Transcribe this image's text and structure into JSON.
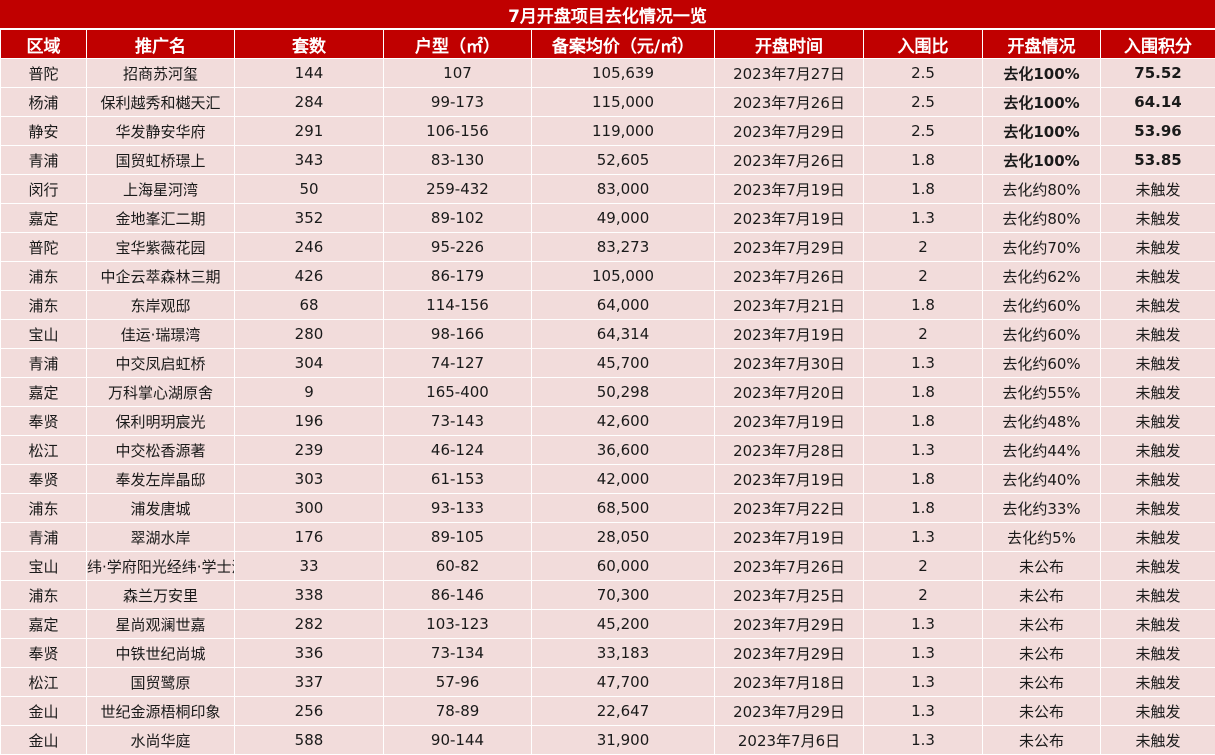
{
  "title": "7月开盘项目去化情况一览",
  "columns": [
    "区域",
    "推广名",
    "套数",
    "户型（㎡）",
    "备案均价（元/㎡）",
    "开盘时间",
    "入围比",
    "开盘情况",
    "入围积分"
  ],
  "rows": [
    [
      "普陀",
      "招商苏河玺",
      "144",
      "107",
      "105,639",
      "2023年7月27日",
      "2.5",
      "去化100%",
      "75.52"
    ],
    [
      "杨浦",
      "保利越秀和樾天汇",
      "284",
      "99-173",
      "115,000",
      "2023年7月26日",
      "2.5",
      "去化100%",
      "64.14"
    ],
    [
      "静安",
      "华发静安华府",
      "291",
      "106-156",
      "119,000",
      "2023年7月29日",
      "2.5",
      "去化100%",
      "53.96"
    ],
    [
      "青浦",
      "国贸虹桥璟上",
      "343",
      "83-130",
      "52,605",
      "2023年7月26日",
      "1.8",
      "去化100%",
      "53.85"
    ],
    [
      "闵行",
      "上海星河湾",
      "50",
      "259-432",
      "83,000",
      "2023年7月19日",
      "1.8",
      "去化约80%",
      "未触发"
    ],
    [
      "嘉定",
      "金地峯汇二期",
      "352",
      "89-102",
      "49,000",
      "2023年7月19日",
      "1.3",
      "去化约80%",
      "未触发"
    ],
    [
      "普陀",
      "宝华紫薇花园",
      "246",
      "95-226",
      "83,273",
      "2023年7月29日",
      "2",
      "去化约70%",
      "未触发"
    ],
    [
      "浦东",
      "中企云萃森林三期",
      "426",
      "86-179",
      "105,000",
      "2023年7月26日",
      "2",
      "去化约62%",
      "未触发"
    ],
    [
      "浦东",
      "东岸观邸",
      "68",
      "114-156",
      "64,000",
      "2023年7月21日",
      "1.8",
      "去化约60%",
      "未触发"
    ],
    [
      "宝山",
      "佳运·瑞璟湾",
      "280",
      "98-166",
      "64,314",
      "2023年7月19日",
      "2",
      "去化约60%",
      "未触发"
    ],
    [
      "青浦",
      "中交凤启虹桥",
      "304",
      "74-127",
      "45,700",
      "2023年7月30日",
      "1.3",
      "去化约60%",
      "未触发"
    ],
    [
      "嘉定",
      "万科掌心湖原舍",
      "9",
      "165-400",
      "50,298",
      "2023年7月20日",
      "1.8",
      "去化约55%",
      "未触发"
    ],
    [
      "奉贤",
      "保利明玥宸光",
      "196",
      "73-143",
      "42,600",
      "2023年7月19日",
      "1.8",
      "去化约48%",
      "未触发"
    ],
    [
      "松江",
      "中交松香源著",
      "239",
      "46-124",
      "36,600",
      "2023年7月28日",
      "1.3",
      "去化约44%",
      "未触发"
    ],
    [
      "奉贤",
      "奉发左岸晶邸",
      "303",
      "61-153",
      "42,000",
      "2023年7月19日",
      "1.8",
      "去化约40%",
      "未触发"
    ],
    [
      "浦东",
      "浦发唐城",
      "300",
      "93-133",
      "68,500",
      "2023年7月22日",
      "1.8",
      "去化约33%",
      "未触发"
    ],
    [
      "青浦",
      "翠湖水岸",
      "176",
      "89-105",
      "28,050",
      "2023年7月19日",
      "1.3",
      "去化约5%",
      "未触发"
    ],
    [
      "宝山",
      "纬·学府阳光经纬·学士汇",
      "33",
      "60-82",
      "60,000",
      "2023年7月26日",
      "2",
      "未公布",
      "未触发"
    ],
    [
      "浦东",
      "森兰万安里",
      "338",
      "86-146",
      "70,300",
      "2023年7月25日",
      "2",
      "未公布",
      "未触发"
    ],
    [
      "嘉定",
      "星尚观澜世嘉",
      "282",
      "103-123",
      "45,200",
      "2023年7月29日",
      "1.3",
      "未公布",
      "未触发"
    ],
    [
      "奉贤",
      "中铁世纪尚城",
      "336",
      "73-134",
      "33,183",
      "2023年7月29日",
      "1.3",
      "未公布",
      "未触发"
    ],
    [
      "松江",
      "国贸鹭原",
      "337",
      "57-96",
      "47,700",
      "2023年7月18日",
      "1.3",
      "未公布",
      "未触发"
    ],
    [
      "金山",
      "世纪金源梧桐印象",
      "256",
      "78-89",
      "22,647",
      "2023年7月29日",
      "1.3",
      "未公布",
      "未触发"
    ],
    [
      "金山",
      "水尚华庭",
      "588",
      "90-144",
      "31,900",
      "2023年7月6日",
      "1.3",
      "未公布",
      "未触发"
    ]
  ]
}
